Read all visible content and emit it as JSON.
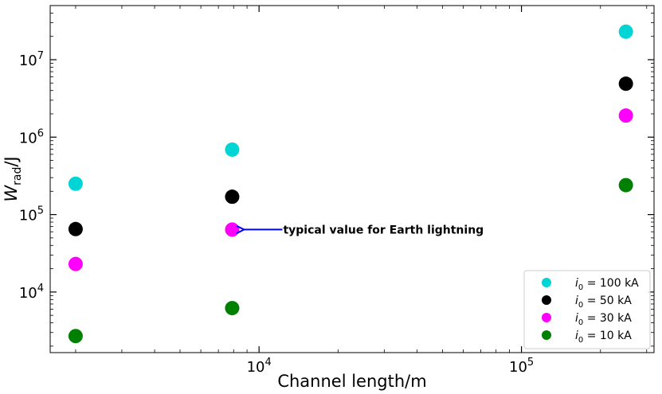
{
  "chart_data": {
    "type": "scatter",
    "x_scale": "log",
    "y_scale": "log",
    "xlim": [
      1600,
      320000
    ],
    "ylim": [
      1650,
      50000000
    ],
    "x_ticks": [
      {
        "value": 10000,
        "mantissa": "10",
        "exp": "4"
      },
      {
        "value": 100000,
        "mantissa": "10",
        "exp": "5"
      }
    ],
    "y_ticks": [
      {
        "value": 10000,
        "mantissa": "10",
        "exp": "4"
      },
      {
        "value": 100000,
        "mantissa": "10",
        "exp": "5"
      },
      {
        "value": 1000000,
        "mantissa": "10",
        "exp": "6"
      },
      {
        "value": 10000000,
        "mantissa": "10",
        "exp": "7"
      }
    ],
    "xlabel": "Channel length/m",
    "ylabel": {
      "main": "W",
      "sub": "rad",
      "rest": "/J"
    },
    "grid": false,
    "legend_position": "bottom-right",
    "series": [
      {
        "name": "i0 = 100 kA",
        "label_var": "i",
        "label_sub": "0",
        "label_rest": " = 100 kA",
        "color": "#00d5d5",
        "points": [
          {
            "x": 2000,
            "y": 250000
          },
          {
            "x": 7900,
            "y": 690000
          },
          {
            "x": 250000,
            "y": 23000000
          }
        ]
      },
      {
        "name": "i0 = 50 kA",
        "label_var": "i",
        "label_sub": "0",
        "label_rest": " = 50 kA",
        "color": "#000000",
        "points": [
          {
            "x": 2000,
            "y": 65000
          },
          {
            "x": 7900,
            "y": 170000
          },
          {
            "x": 250000,
            "y": 4900000
          }
        ]
      },
      {
        "name": "i0 = 30 kA",
        "label_var": "i",
        "label_sub": "0",
        "label_rest": " = 30 kA",
        "color": "#ff00ff",
        "points": [
          {
            "x": 2000,
            "y": 23000
          },
          {
            "x": 7900,
            "y": 64000
          },
          {
            "x": 250000,
            "y": 1900000
          }
        ]
      },
      {
        "name": "i0 = 10 kA",
        "label_var": "i",
        "label_sub": "0",
        "label_rest": " = 10 kA",
        "color": "#008000",
        "points": [
          {
            "x": 2000,
            "y": 2700
          },
          {
            "x": 7900,
            "y": 6200
          },
          {
            "x": 250000,
            "y": 240000
          }
        ]
      }
    ],
    "annotation": {
      "text": "typical value for Earth lightning",
      "x": 7900,
      "y": 64000,
      "arrow_color": "#0000ff"
    }
  }
}
